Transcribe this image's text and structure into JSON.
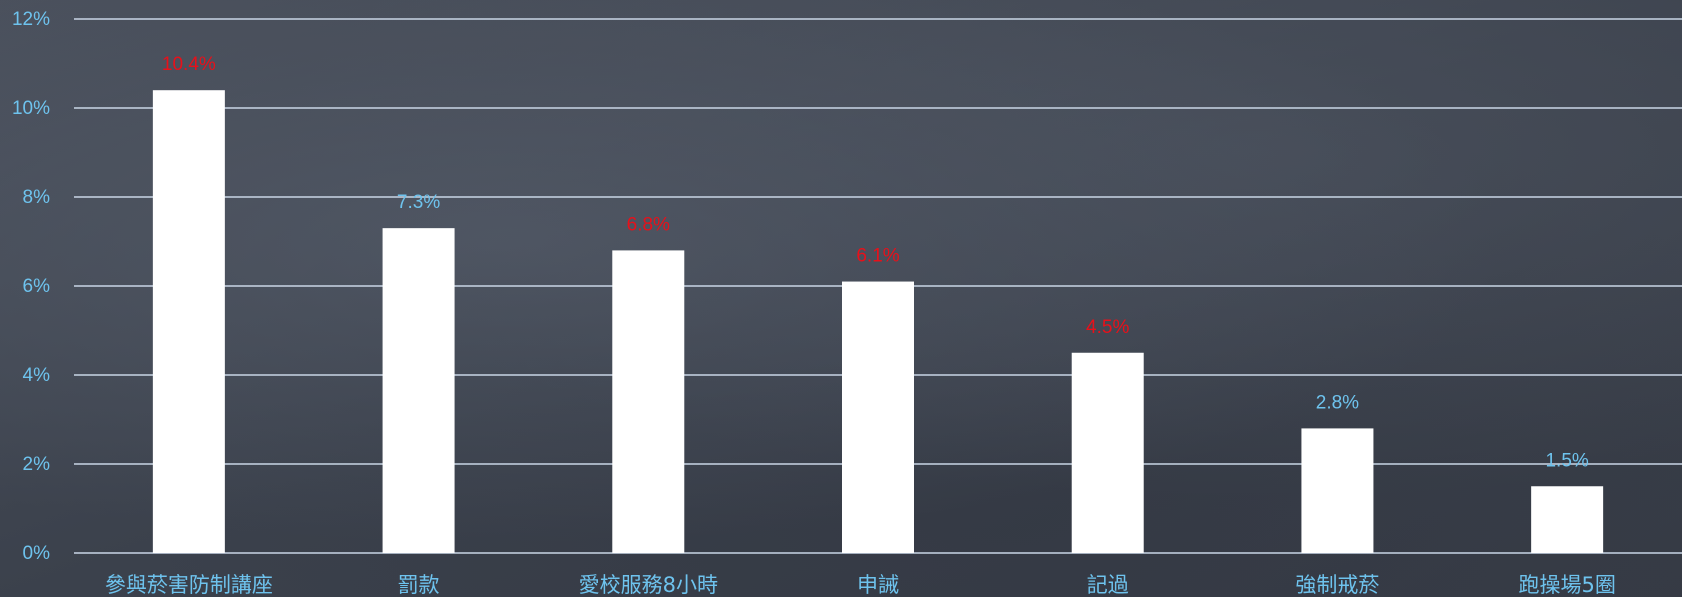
{
  "chart_data": {
    "type": "bar",
    "categories": [
      "參與菸害防制講座",
      "罰款",
      "愛校服務8小時",
      "申誡",
      "記過",
      "強制戒菸",
      "跑操場5圈"
    ],
    "values": [
      10.4,
      7.3,
      6.8,
      6.1,
      4.5,
      2.8,
      1.5
    ],
    "data_labels": [
      "10.4%",
      "7.3%",
      "6.8%",
      "6.1%",
      "4.5%",
      "2.8%",
      "1.5%"
    ],
    "label_colors": [
      "#e8101a",
      "#6ec3ee",
      "#e8101a",
      "#e8101a",
      "#e8101a",
      "#6ec3ee",
      "#6ec3ee"
    ],
    "y_ticks": [
      "0%",
      "2%",
      "4%",
      "6%",
      "8%",
      "10%",
      "12%"
    ],
    "ylim": [
      0,
      12
    ],
    "grid": true,
    "colors": {
      "bar": "#ffffff",
      "grid": "#c9d6e6",
      "tick_text": "#6ec3ee",
      "category_text": "#6ec3ee"
    }
  }
}
